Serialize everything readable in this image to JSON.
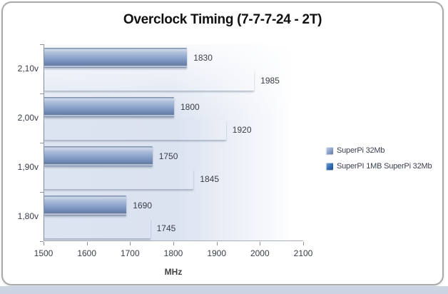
{
  "page": {
    "background_color": "#ffffff",
    "bottom_strip_color": "#ccd4e3",
    "frame_border_color": "#ababab"
  },
  "chart_data": {
    "type": "bar",
    "orientation": "horizontal",
    "title": "Overclock Timing (7-7-7-24 - 2T)",
    "xlabel": "MHz",
    "ylabel": "",
    "xlim": [
      1500,
      2100
    ],
    "xticks": [
      1500,
      1600,
      1700,
      1800,
      1900,
      2000,
      2100
    ],
    "categories": [
      "2,10v",
      "2,00v",
      "1,90v",
      "1,80v"
    ],
    "series": [
      {
        "name": "SuperPi 32Mb",
        "color": "#8da5cb",
        "values": [
          1830,
          1800,
          1750,
          1690
        ]
      },
      {
        "name": "SuperPI 1MB SuperPi 32Mb",
        "color": "#3470b2",
        "values": [
          1985,
          1920,
          1845,
          1745
        ]
      }
    ],
    "data_labels_shown": true,
    "legend_position": "right",
    "grid": false,
    "plot_background": [
      "#dde4f1",
      "#ffffff"
    ]
  }
}
